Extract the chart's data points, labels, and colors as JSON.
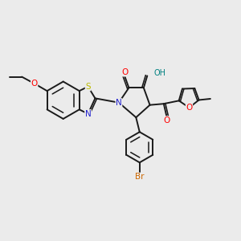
{
  "bg_color": "#ebebeb",
  "bond_color": "#1a1a1a",
  "bw": 1.4,
  "atom_colors": {
    "O": "#ff0000",
    "N": "#2020cc",
    "S": "#bbbb00",
    "Br": "#cc6600",
    "OH": "#008080",
    "C": "#1a1a1a"
  },
  "fs": 7.5
}
